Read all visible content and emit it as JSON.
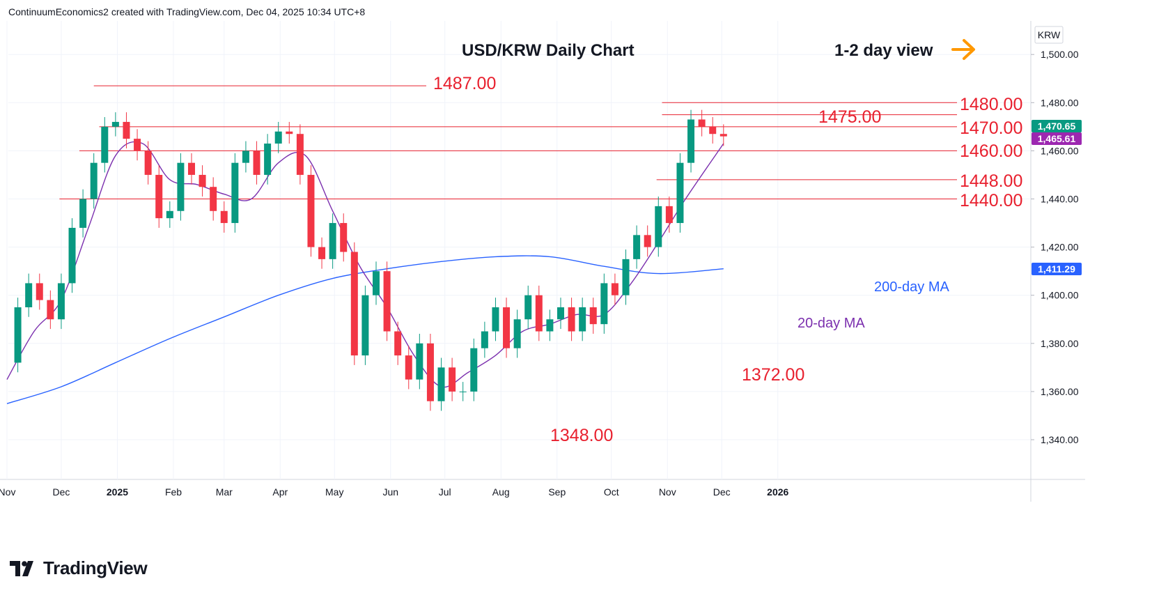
{
  "attribution": "ContinuumEconomics2 created with TradingView.com, Dec 04, 2025 10:34 UTC+8",
  "brand": "TradingView",
  "colors": {
    "up": "#089981",
    "down": "#f23645",
    "ma20": "#7b2fae",
    "ma200": "#2962ff",
    "levels": "#e8202e",
    "arrow": "#ff9800"
  },
  "icons": [
    "tradingview-logo-icon",
    "arrow-right-icon"
  ],
  "chart_data": {
    "type": "candlestick",
    "title": "USD/KRW Daily Chart",
    "subtitle": "1-2 day view",
    "currency": "KRW",
    "ylim": [
      1325,
      1515
    ],
    "y_ticks": [
      "1,340.00",
      "1,360.00",
      "1,380.00",
      "1,400.00",
      "1,420.00",
      "1,440.00",
      "1,460.00",
      "1,480.00",
      "1,500.00"
    ],
    "y_tick_values": [
      1340,
      1360,
      1380,
      1400,
      1420,
      1440,
      1460,
      1480,
      1500
    ],
    "x_ticks": [
      "Nov",
      "Dec",
      "2025",
      "Feb",
      "Mar",
      "Apr",
      "May",
      "Jun",
      "Jul",
      "Aug",
      "Sep",
      "Oct",
      "Nov",
      "Dec",
      "2026"
    ],
    "x_tick_days": [
      0,
      30,
      61,
      92,
      120,
      151,
      181,
      212,
      242,
      273,
      304,
      334,
      365,
      395,
      426
    ],
    "levels": [
      {
        "label": "1487.00",
        "value": 1487,
        "from_day": 48
      },
      {
        "label": "1480.00",
        "value": 1480,
        "from_day": 362
      },
      {
        "label": "1475.00",
        "value": 1475,
        "from_day": 362
      },
      {
        "label": "1470.00",
        "value": 1470,
        "from_day": 51
      },
      {
        "label": "1460.00",
        "value": 1460,
        "from_day": 40
      },
      {
        "label": "1448.00",
        "value": 1448,
        "from_day": 359
      },
      {
        "label": "1440.00",
        "value": 1440,
        "from_day": 29
      }
    ],
    "low_labels": [
      {
        "label": "1372.00",
        "value": 1372
      },
      {
        "label": "1348.00",
        "value": 1348
      }
    ],
    "series": [
      {
        "name": "USD/KRW",
        "x_days": [
          0,
          6,
          12,
          18,
          24,
          30,
          36,
          42,
          48,
          54,
          60,
          66,
          72,
          78,
          84,
          90,
          96,
          102,
          108,
          114,
          120,
          126,
          132,
          138,
          144,
          150,
          156,
          162,
          168,
          174,
          180,
          186,
          192,
          198,
          204,
          210,
          216,
          222,
          228,
          234,
          240,
          246,
          252,
          258,
          264,
          270,
          276,
          282,
          288,
          294,
          300,
          306,
          312,
          318,
          324,
          330,
          336,
          342,
          348,
          354,
          360,
          366,
          372,
          378,
          384,
          390,
          396
        ],
        "close": [
          1372,
          1395,
          1405,
          1398,
          1390,
          1405,
          1428,
          1440,
          1455,
          1470,
          1472,
          1465,
          1460,
          1450,
          1432,
          1435,
          1455,
          1450,
          1445,
          1435,
          1430,
          1455,
          1460,
          1450,
          1463,
          1468,
          1467,
          1450,
          1420,
          1415,
          1430,
          1418,
          1375,
          1400,
          1410,
          1385,
          1375,
          1365,
          1380,
          1356,
          1370,
          1360,
          1360,
          1378,
          1385,
          1395,
          1378,
          1390,
          1400,
          1385,
          1390,
          1395,
          1385,
          1395,
          1388,
          1405,
          1400,
          1415,
          1425,
          1420,
          1437,
          1430,
          1455,
          1473,
          1470,
          1467,
          1466
        ]
      },
      {
        "name": "20-day MA",
        "x_days": [
          0,
          15,
          30,
          45,
          60,
          75,
          90,
          105,
          120,
          135,
          150,
          165,
          180,
          195,
          210,
          225,
          240,
          255,
          270,
          285,
          300,
          315,
          330,
          345,
          360,
          375,
          396
        ],
        "values": [
          1365,
          1385,
          1398,
          1428,
          1458,
          1463,
          1448,
          1446,
          1442,
          1440,
          1455,
          1458,
          1435,
          1412,
          1395,
          1375,
          1362,
          1368,
          1375,
          1385,
          1388,
          1392,
          1392,
          1405,
          1422,
          1440,
          1463
        ]
      },
      {
        "name": "200-day MA",
        "x_days": [
          0,
          30,
          60,
          90,
          120,
          150,
          180,
          210,
          240,
          270,
          300,
          330,
          360,
          396
        ],
        "values": [
          1355,
          1362,
          1372,
          1382,
          1391,
          1400,
          1407,
          1411,
          1414,
          1416,
          1416,
          1412,
          1409,
          1411
        ]
      }
    ],
    "price_badges": [
      {
        "label": "1,470.65",
        "value": 1470.65,
        "color": "#089981"
      },
      {
        "label": "1,465.61",
        "value": 1465.61,
        "color": "#9c27b0"
      },
      {
        "label": "1,411.29",
        "value": 1411.29,
        "color": "#2962ff"
      }
    ],
    "ma_labels": {
      "ma20": "20-day MA",
      "ma200": "200-day MA"
    }
  }
}
